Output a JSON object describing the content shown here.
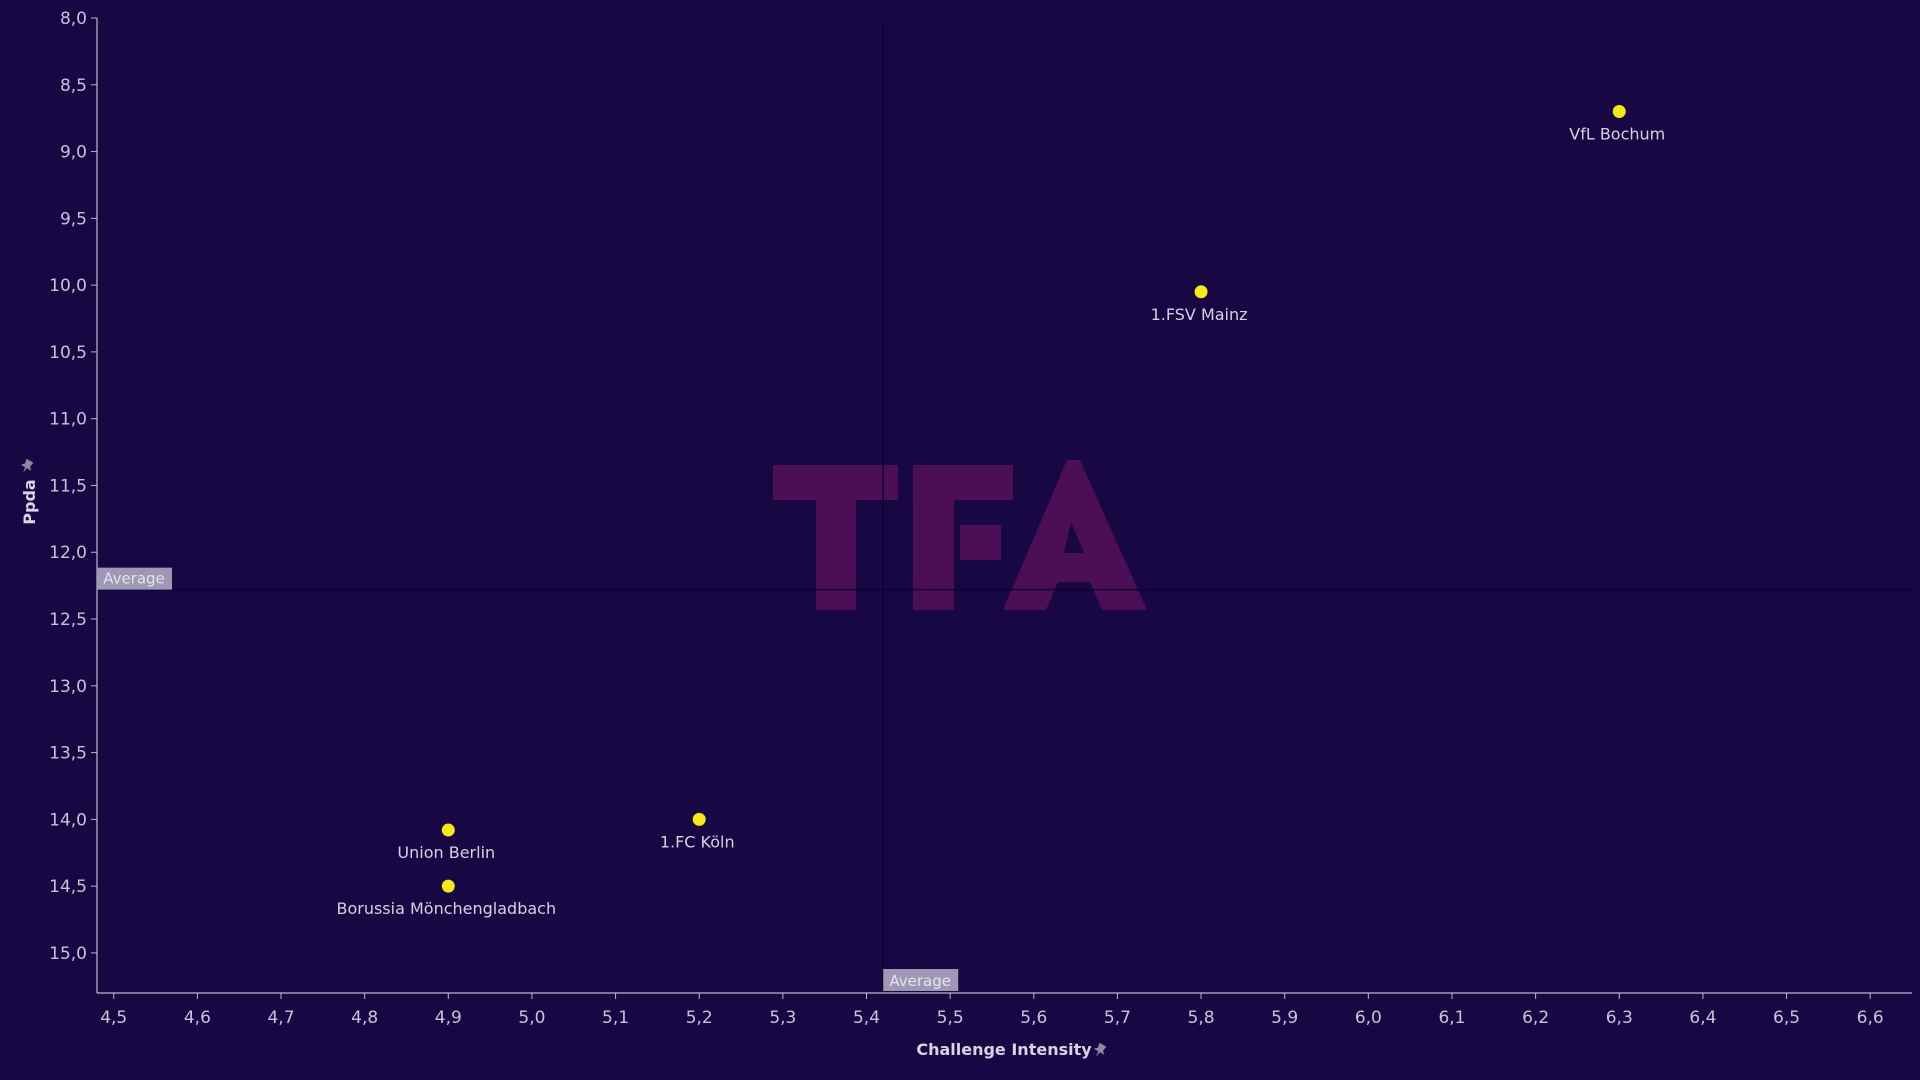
{
  "chart_data": {
    "type": "scatter",
    "xlabel": "Challenge Intensity",
    "ylabel": "Ppda",
    "xlim": [
      4.48,
      6.65
    ],
    "ylim": [
      8.0,
      15.3
    ],
    "y_inverted": true,
    "x_ticks": [
      "4,5",
      "4,6",
      "4,7",
      "4,8",
      "4,9",
      "5,0",
      "5,1",
      "5,2",
      "5,3",
      "5,4",
      "5,5",
      "5,6",
      "5,7",
      "5,8",
      "5,9",
      "6,0",
      "6,1",
      "6,2",
      "6,3",
      "6,4",
      "6,5",
      "6,6"
    ],
    "y_ticks": [
      "8,0",
      "8,5",
      "9,0",
      "9,5",
      "10,0",
      "10,5",
      "11,0",
      "11,5",
      "12,0",
      "12,5",
      "13,0",
      "13,5",
      "14,0",
      "14,5",
      "15,0"
    ],
    "average_x": 5.42,
    "average_y": 12.28,
    "average_label": "Average",
    "points": [
      {
        "label": "VfL Bochum",
        "x": 6.3,
        "y": 8.7
      },
      {
        "label": "1.FSV Mainz",
        "x": 5.8,
        "y": 10.05
      },
      {
        "label": "1.FC Köln",
        "x": 5.2,
        "y": 14.0
      },
      {
        "label": "Union Berlin",
        "x": 4.9,
        "y": 14.08
      },
      {
        "label": "Borussia Mönchengladbach",
        "x": 4.9,
        "y": 14.5
      }
    ],
    "watermark": "TFA",
    "grid": false,
    "legend": "none"
  },
  "colors": {
    "background": "#170742",
    "point": "#f7ea12",
    "axis": "#bdb8cc",
    "average_line": "#0c0330",
    "average_badge": "#9f98b4",
    "watermark": "#4c0f55"
  },
  "icons": {
    "x_axis_pin": "pin-icon",
    "y_axis_pin": "pin-icon"
  }
}
